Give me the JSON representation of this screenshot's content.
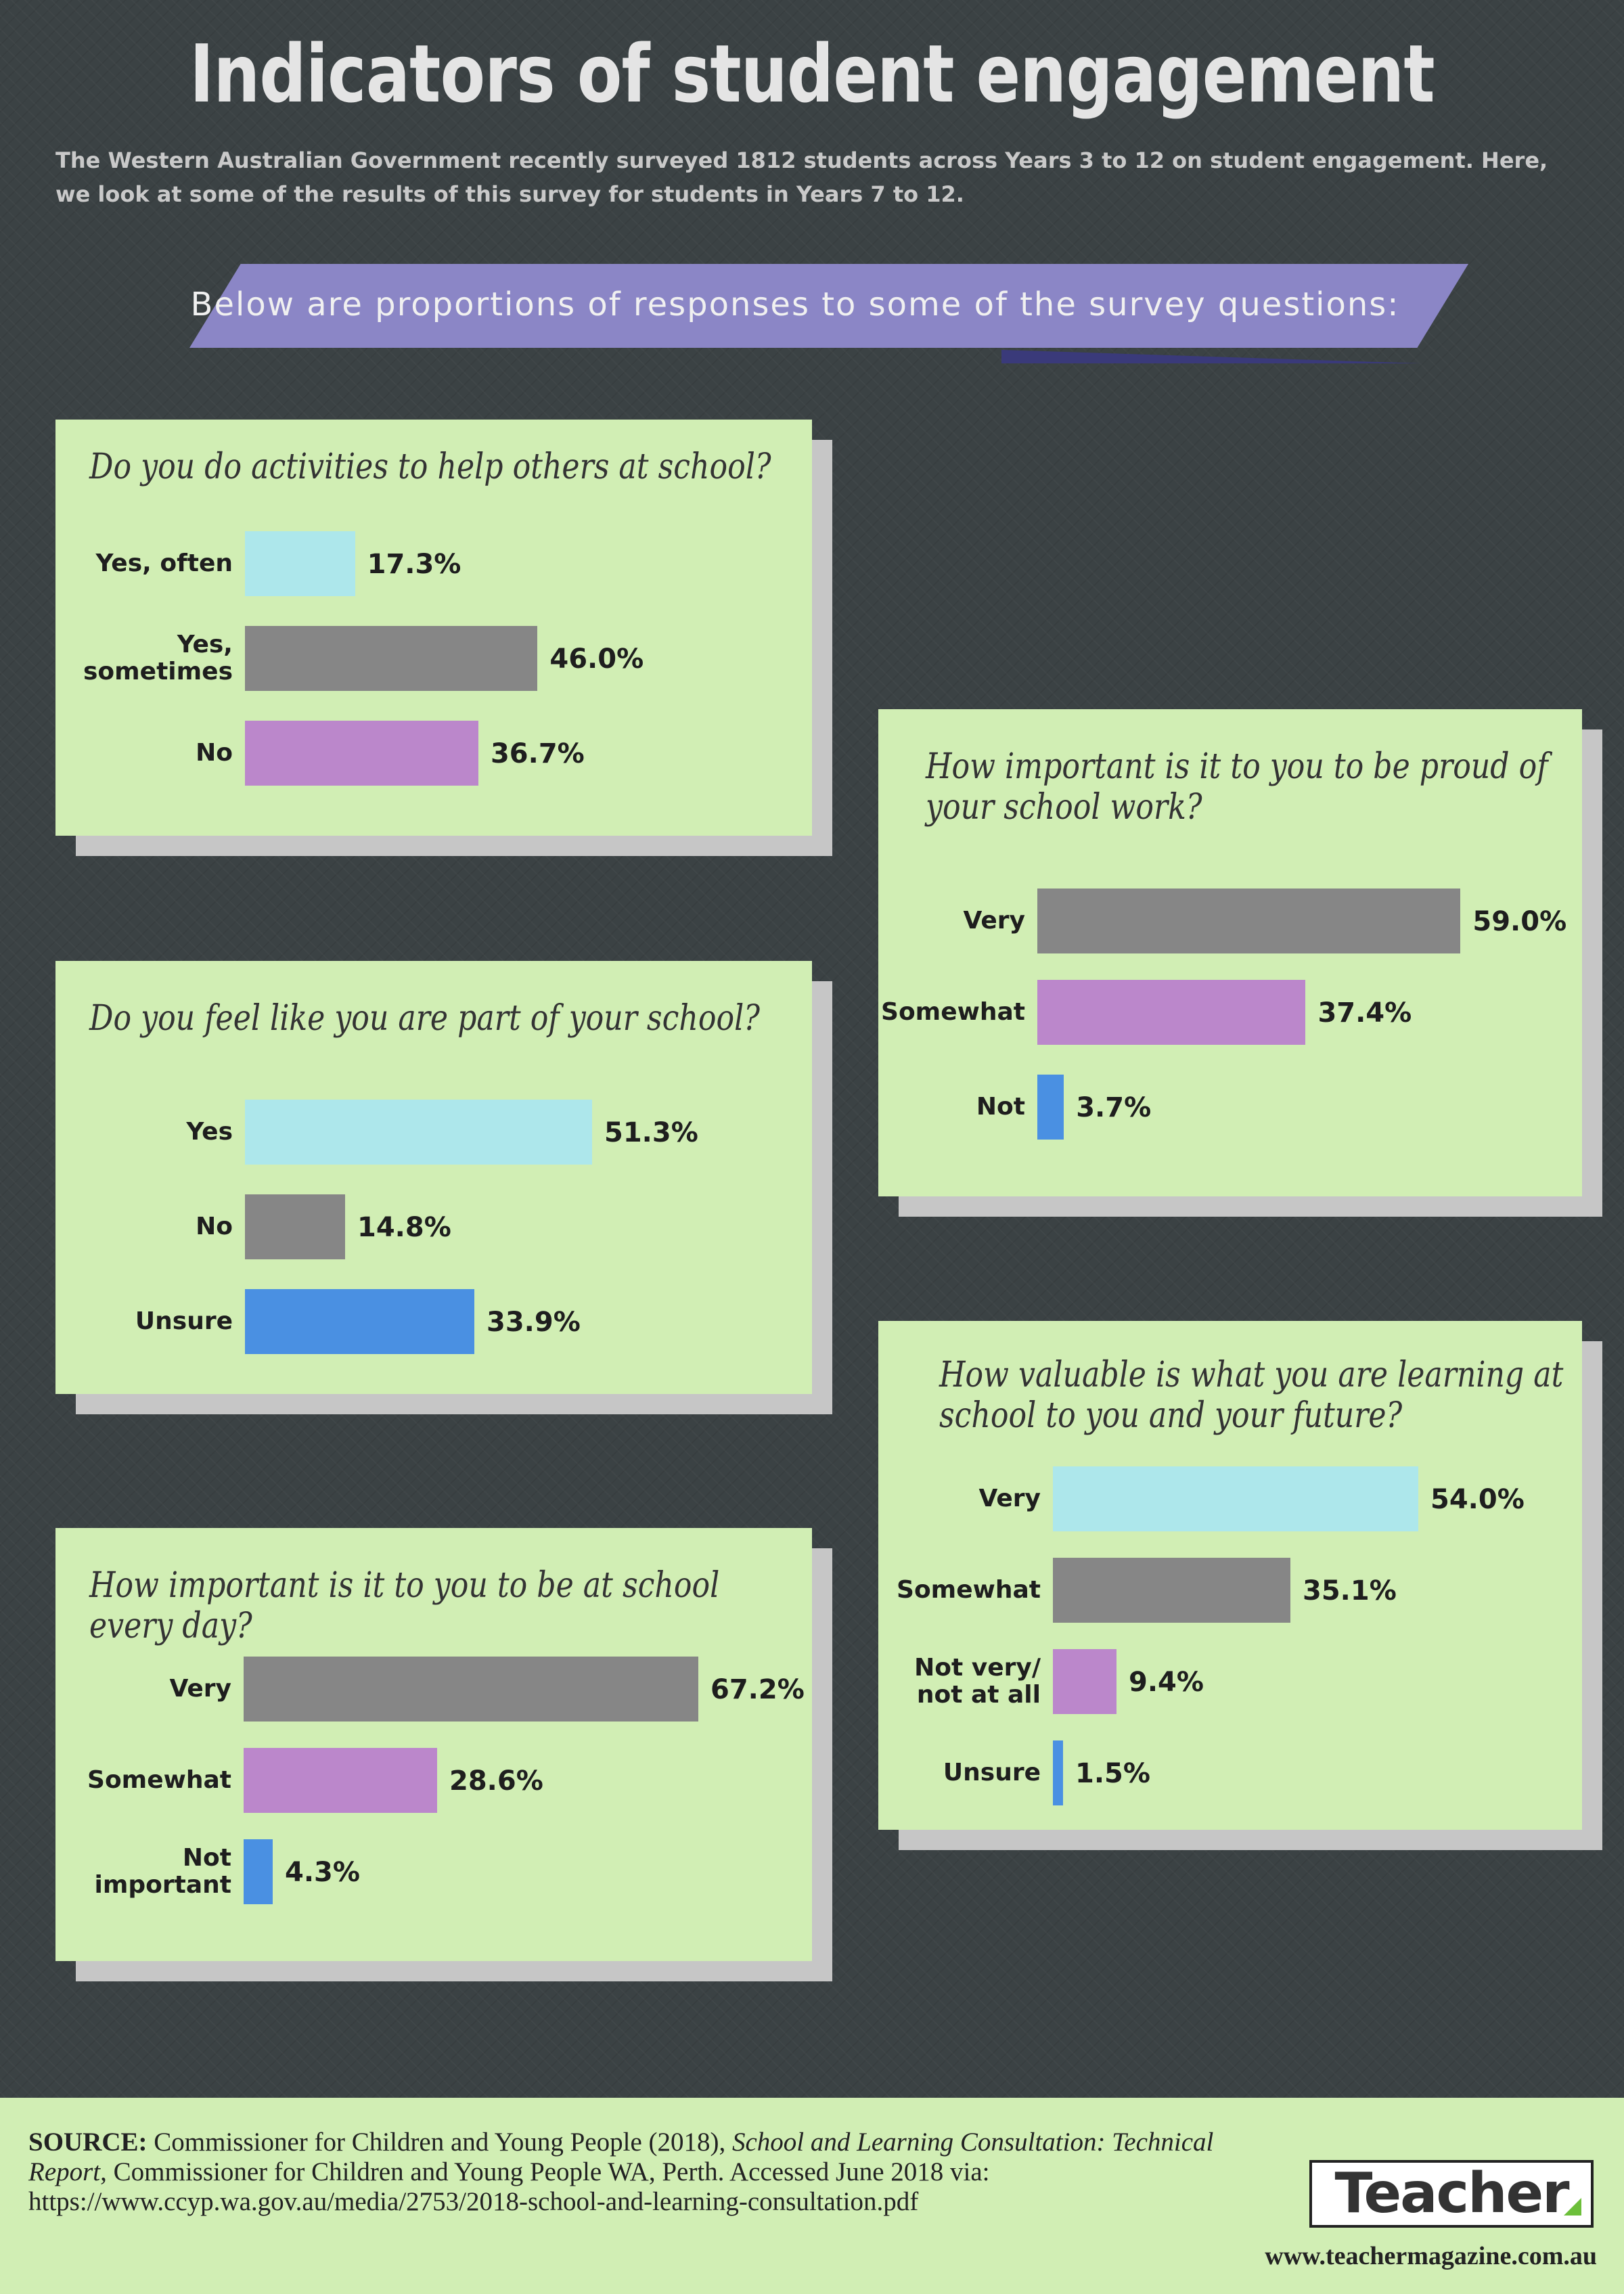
{
  "header": {
    "title": "Indicators of student engagement",
    "intro": "The Western Australian Government recently surveyed 1812 students across Years 3 to 12 on student engagement. Here, we look at some of the results of this survey for students in Years 7 to 12.",
    "banner": "Below are proportions of responses to some of the survey questions:"
  },
  "colors": {
    "background": "#3b4244",
    "panel": "#d1eeb4",
    "panel_shadow": "#c6c6c6",
    "banner": "#8b86c6",
    "light_blue": "#ade7eb",
    "gray": "#868686",
    "purple": "#bb87cb",
    "blue": "#4a90e2"
  },
  "chart_data": [
    {
      "type": "bar",
      "title": "Do you do activities to help others at school?",
      "categories": [
        "Yes, often",
        "Yes,\nsometimes",
        "No"
      ],
      "values": [
        17.3,
        46.0,
        36.7
      ],
      "labels": [
        "17.3%",
        "46.0%",
        "36.7%"
      ],
      "colors": [
        "light_blue",
        "gray",
        "purple"
      ]
    },
    {
      "type": "bar",
      "title": "Do you feel like you are part of your school?",
      "categories": [
        "Yes",
        "No",
        "Unsure"
      ],
      "values": [
        51.3,
        14.8,
        33.9
      ],
      "labels": [
        "51.3%",
        "14.8%",
        "33.9%"
      ],
      "colors": [
        "light_blue",
        "gray",
        "blue"
      ]
    },
    {
      "type": "bar",
      "title": "How important is it to you to be at school every day?",
      "categories": [
        "Very",
        "Somewhat",
        "Not\nimportant"
      ],
      "values": [
        67.2,
        28.6,
        4.3
      ],
      "labels": [
        "67.2%",
        "28.6%",
        "4.3%"
      ],
      "colors": [
        "gray",
        "purple",
        "blue"
      ]
    },
    {
      "type": "bar",
      "title": "How important is it to you to be proud of your school work?",
      "categories": [
        "Very",
        "Somewhat",
        "Not"
      ],
      "values": [
        59.0,
        37.4,
        3.7
      ],
      "labels": [
        "59.0%",
        "37.4%",
        "3.7%"
      ],
      "colors": [
        "gray",
        "purple",
        "blue"
      ]
    },
    {
      "type": "bar",
      "title": "How valuable is what you are learning at school to you and your future?",
      "categories": [
        "Very",
        "Somewhat",
        "Not very/\nnot at all",
        "Unsure"
      ],
      "values": [
        54.0,
        35.1,
        9.4,
        1.5
      ],
      "labels": [
        "54.0%",
        "35.1%",
        "9.4%",
        "1.5%"
      ],
      "colors": [
        "light_blue",
        "gray",
        "purple",
        "blue"
      ]
    }
  ],
  "footer": {
    "source_label": "SOURCE:",
    "source_text_1": " Commissioner for Children and Young People (2018), ",
    "source_title": "School and Learning Consultation: Technical Report",
    "source_text_2": ", Commissioner for Children and Young People WA, Perth. Accessed June 2018 via: https://www.ccyp.wa.gov.au/media/2753/2018-school-and-learning-consultation.pdf",
    "logo": "Teacher",
    "site": "www.teachermagazine.com.au"
  }
}
